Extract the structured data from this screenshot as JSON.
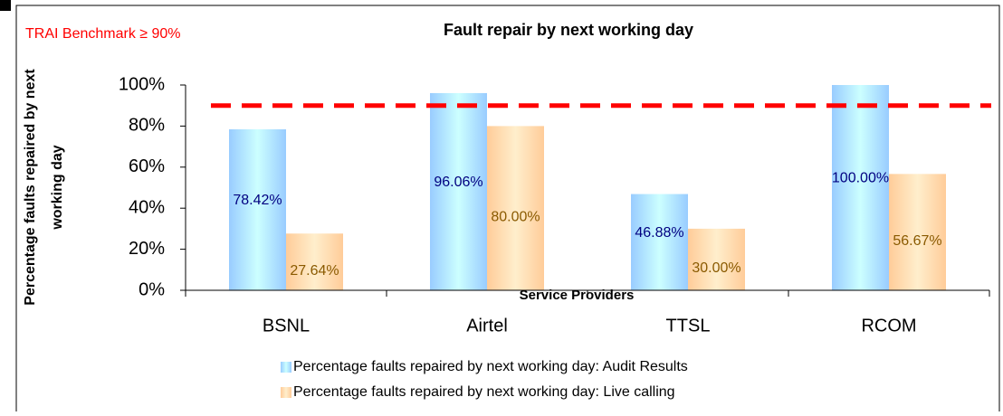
{
  "chart_data": {
    "type": "bar",
    "title": "Fault repair by next working day",
    "annotation": "TRAI Benchmark ≥ 90%",
    "benchmark": {
      "value": 90,
      "color": "#ff0000"
    },
    "xlabel": "Service Providers",
    "ylabel": [
      "Percentage faults repaired by next",
      "working day"
    ],
    "categories": [
      "BSNL",
      "Airtel",
      "TTSL",
      "RCOM"
    ],
    "series": [
      {
        "name": "Percentage faults repaired  by next working day: Audit Results",
        "color": "#99ccff",
        "values": [
          78.42,
          96.06,
          46.88,
          100.0
        ],
        "value_labels": [
          "78.42%",
          "96.06%",
          "46.88%",
          "100.00%"
        ]
      },
      {
        "name": "Percentage faults repaired  by next working day: Live calling",
        "color": "#ffcc99",
        "values": [
          27.64,
          80.0,
          30.0,
          56.67
        ],
        "value_labels": [
          "27.64%",
          "80.00%",
          "30.00%",
          "56.67%"
        ]
      }
    ],
    "ylim": [
      0,
      100
    ],
    "yticks": [
      {
        "value": 0,
        "label": "0%"
      },
      {
        "value": 20,
        "label": "20%"
      },
      {
        "value": 40,
        "label": "40%"
      },
      {
        "value": 60,
        "label": "60%"
      },
      {
        "value": 80,
        "label": "80%"
      },
      {
        "value": 100,
        "label": "100%"
      }
    ],
    "legend": "bottom"
  }
}
